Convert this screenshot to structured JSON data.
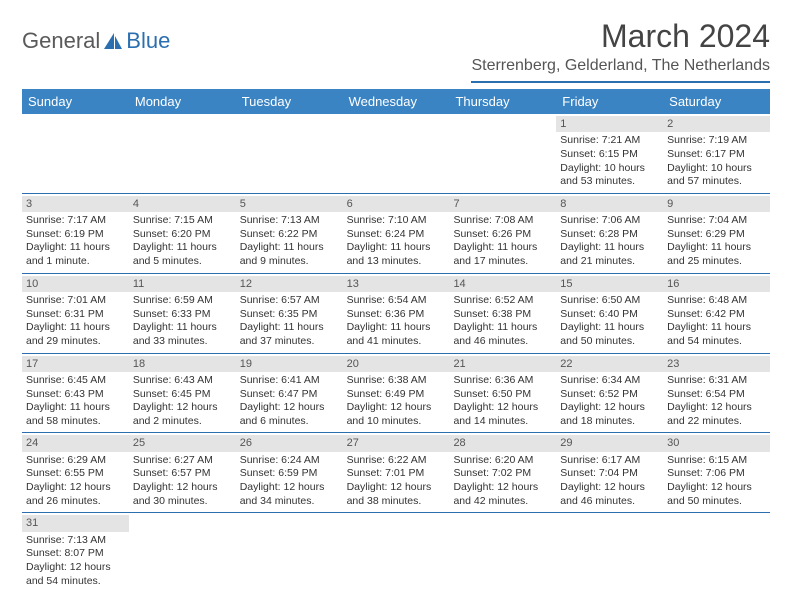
{
  "logo": {
    "part1": "General",
    "part2": "Blue"
  },
  "title": "March 2024",
  "location": "Sterrenberg, Gelderland, The Netherlands",
  "colors": {
    "header_bg": "#3a84c4",
    "accent": "#2b6fb0",
    "daynum_bg": "#e4e4e4"
  },
  "day_headers": [
    "Sunday",
    "Monday",
    "Tuesday",
    "Wednesday",
    "Thursday",
    "Friday",
    "Saturday"
  ],
  "weeks": [
    [
      {
        "empty": true
      },
      {
        "empty": true
      },
      {
        "empty": true
      },
      {
        "empty": true
      },
      {
        "empty": true
      },
      {
        "day": "1",
        "sunrise": "Sunrise: 7:21 AM",
        "sunset": "Sunset: 6:15 PM",
        "daylight": "Daylight: 10 hours and 53 minutes."
      },
      {
        "day": "2",
        "sunrise": "Sunrise: 7:19 AM",
        "sunset": "Sunset: 6:17 PM",
        "daylight": "Daylight: 10 hours and 57 minutes."
      }
    ],
    [
      {
        "day": "3",
        "sunrise": "Sunrise: 7:17 AM",
        "sunset": "Sunset: 6:19 PM",
        "daylight": "Daylight: 11 hours and 1 minute."
      },
      {
        "day": "4",
        "sunrise": "Sunrise: 7:15 AM",
        "sunset": "Sunset: 6:20 PM",
        "daylight": "Daylight: 11 hours and 5 minutes."
      },
      {
        "day": "5",
        "sunrise": "Sunrise: 7:13 AM",
        "sunset": "Sunset: 6:22 PM",
        "daylight": "Daylight: 11 hours and 9 minutes."
      },
      {
        "day": "6",
        "sunrise": "Sunrise: 7:10 AM",
        "sunset": "Sunset: 6:24 PM",
        "daylight": "Daylight: 11 hours and 13 minutes."
      },
      {
        "day": "7",
        "sunrise": "Sunrise: 7:08 AM",
        "sunset": "Sunset: 6:26 PM",
        "daylight": "Daylight: 11 hours and 17 minutes."
      },
      {
        "day": "8",
        "sunrise": "Sunrise: 7:06 AM",
        "sunset": "Sunset: 6:28 PM",
        "daylight": "Daylight: 11 hours and 21 minutes."
      },
      {
        "day": "9",
        "sunrise": "Sunrise: 7:04 AM",
        "sunset": "Sunset: 6:29 PM",
        "daylight": "Daylight: 11 hours and 25 minutes."
      }
    ],
    [
      {
        "day": "10",
        "sunrise": "Sunrise: 7:01 AM",
        "sunset": "Sunset: 6:31 PM",
        "daylight": "Daylight: 11 hours and 29 minutes."
      },
      {
        "day": "11",
        "sunrise": "Sunrise: 6:59 AM",
        "sunset": "Sunset: 6:33 PM",
        "daylight": "Daylight: 11 hours and 33 minutes."
      },
      {
        "day": "12",
        "sunrise": "Sunrise: 6:57 AM",
        "sunset": "Sunset: 6:35 PM",
        "daylight": "Daylight: 11 hours and 37 minutes."
      },
      {
        "day": "13",
        "sunrise": "Sunrise: 6:54 AM",
        "sunset": "Sunset: 6:36 PM",
        "daylight": "Daylight: 11 hours and 41 minutes."
      },
      {
        "day": "14",
        "sunrise": "Sunrise: 6:52 AM",
        "sunset": "Sunset: 6:38 PM",
        "daylight": "Daylight: 11 hours and 46 minutes."
      },
      {
        "day": "15",
        "sunrise": "Sunrise: 6:50 AM",
        "sunset": "Sunset: 6:40 PM",
        "daylight": "Daylight: 11 hours and 50 minutes."
      },
      {
        "day": "16",
        "sunrise": "Sunrise: 6:48 AM",
        "sunset": "Sunset: 6:42 PM",
        "daylight": "Daylight: 11 hours and 54 minutes."
      }
    ],
    [
      {
        "day": "17",
        "sunrise": "Sunrise: 6:45 AM",
        "sunset": "Sunset: 6:43 PM",
        "daylight": "Daylight: 11 hours and 58 minutes."
      },
      {
        "day": "18",
        "sunrise": "Sunrise: 6:43 AM",
        "sunset": "Sunset: 6:45 PM",
        "daylight": "Daylight: 12 hours and 2 minutes."
      },
      {
        "day": "19",
        "sunrise": "Sunrise: 6:41 AM",
        "sunset": "Sunset: 6:47 PM",
        "daylight": "Daylight: 12 hours and 6 minutes."
      },
      {
        "day": "20",
        "sunrise": "Sunrise: 6:38 AM",
        "sunset": "Sunset: 6:49 PM",
        "daylight": "Daylight: 12 hours and 10 minutes."
      },
      {
        "day": "21",
        "sunrise": "Sunrise: 6:36 AM",
        "sunset": "Sunset: 6:50 PM",
        "daylight": "Daylight: 12 hours and 14 minutes."
      },
      {
        "day": "22",
        "sunrise": "Sunrise: 6:34 AM",
        "sunset": "Sunset: 6:52 PM",
        "daylight": "Daylight: 12 hours and 18 minutes."
      },
      {
        "day": "23",
        "sunrise": "Sunrise: 6:31 AM",
        "sunset": "Sunset: 6:54 PM",
        "daylight": "Daylight: 12 hours and 22 minutes."
      }
    ],
    [
      {
        "day": "24",
        "sunrise": "Sunrise: 6:29 AM",
        "sunset": "Sunset: 6:55 PM",
        "daylight": "Daylight: 12 hours and 26 minutes."
      },
      {
        "day": "25",
        "sunrise": "Sunrise: 6:27 AM",
        "sunset": "Sunset: 6:57 PM",
        "daylight": "Daylight: 12 hours and 30 minutes."
      },
      {
        "day": "26",
        "sunrise": "Sunrise: 6:24 AM",
        "sunset": "Sunset: 6:59 PM",
        "daylight": "Daylight: 12 hours and 34 minutes."
      },
      {
        "day": "27",
        "sunrise": "Sunrise: 6:22 AM",
        "sunset": "Sunset: 7:01 PM",
        "daylight": "Daylight: 12 hours and 38 minutes."
      },
      {
        "day": "28",
        "sunrise": "Sunrise: 6:20 AM",
        "sunset": "Sunset: 7:02 PM",
        "daylight": "Daylight: 12 hours and 42 minutes."
      },
      {
        "day": "29",
        "sunrise": "Sunrise: 6:17 AM",
        "sunset": "Sunset: 7:04 PM",
        "daylight": "Daylight: 12 hours and 46 minutes."
      },
      {
        "day": "30",
        "sunrise": "Sunrise: 6:15 AM",
        "sunset": "Sunset: 7:06 PM",
        "daylight": "Daylight: 12 hours and 50 minutes."
      }
    ],
    [
      {
        "day": "31",
        "sunrise": "Sunrise: 7:13 AM",
        "sunset": "Sunset: 8:07 PM",
        "daylight": "Daylight: 12 hours and 54 minutes."
      },
      {
        "empty": true
      },
      {
        "empty": true
      },
      {
        "empty": true
      },
      {
        "empty": true
      },
      {
        "empty": true
      },
      {
        "empty": true
      }
    ]
  ]
}
